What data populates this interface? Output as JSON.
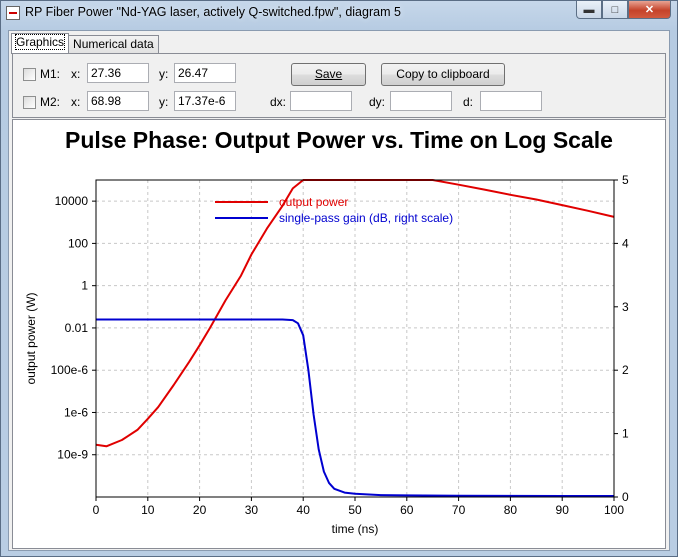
{
  "window": {
    "title": "RP Fiber Power \"Nd-YAG laser, actively Q-switched.fpw\", diagram 5",
    "controls": [
      "minimize-icon",
      "maximize-icon",
      "close-icon"
    ]
  },
  "tabs": [
    {
      "label": "Graphics",
      "active": true
    },
    {
      "label": "Numerical data",
      "active": false
    }
  ],
  "markers": {
    "m1": {
      "label": "M1:",
      "x_label": "x:",
      "x_value": "27.36",
      "y_label": "y:",
      "y_value": "26.47"
    },
    "m2": {
      "label": "M2:",
      "x_label": "x:",
      "x_value": "68.98",
      "y_label": "y:",
      "y_value": "17.37e-6"
    }
  },
  "buttons": {
    "save": "Save",
    "copy": "Copy to clipboard"
  },
  "diff": {
    "dx_label": "dx:",
    "dy_label": "dy:",
    "d_label": "d:",
    "dx_value": "",
    "dy_value": "",
    "d_value": ""
  },
  "chart_data": {
    "type": "line",
    "title": "Pulse Phase: Output Power vs. Time on Log Scale",
    "xlabel": "time (ns)",
    "ylabel": "output power (W)",
    "y2label": "",
    "xlim": [
      0,
      100
    ],
    "ylim_log10": [
      -10,
      5
    ],
    "y2lim": [
      0,
      5
    ],
    "grid": true,
    "legend_position": "top-center",
    "x_ticks": [
      "0",
      "10",
      "20",
      "30",
      "40",
      "50",
      "60",
      "70",
      "80",
      "90",
      "100"
    ],
    "y_ticks": [
      "10e-9",
      "1e-6",
      "100e-6",
      "0.01",
      "1",
      "100",
      "10000"
    ],
    "y_tick_values": [
      1e-08,
      1e-06,
      0.0001,
      0.01,
      1,
      100,
      10000
    ],
    "y2_ticks": [
      "0",
      "1",
      "2",
      "3",
      "4",
      "5"
    ],
    "series": [
      {
        "name": "output power",
        "axis": "left",
        "color": "#e00000",
        "x": [
          0,
          2,
          5,
          8,
          10,
          12,
          15,
          18,
          20,
          22,
          25,
          28,
          30,
          33,
          36,
          38,
          40,
          42,
          44,
          46,
          48,
          50,
          55,
          60,
          65,
          70,
          75,
          80,
          85,
          90,
          95,
          100
        ],
        "y": [
          3e-08,
          2.5e-08,
          5e-08,
          1.5e-07,
          5e-07,
          1.8e-06,
          2e-05,
          0.00025,
          0.0015,
          0.01,
          0.2,
          3,
          30,
          500,
          6000,
          40000,
          150000,
          400000,
          600000,
          600000,
          550000,
          480000,
          300000,
          180000,
          110000,
          60000,
          35000,
          20000,
          12000,
          6500,
          3500,
          1800
        ]
      },
      {
        "name": "single-pass gain (dB, right scale)",
        "axis": "right",
        "color": "#0000d0",
        "x": [
          0,
          10,
          20,
          30,
          36,
          38,
          39,
          40,
          41,
          42,
          43,
          44,
          45,
          46,
          48,
          50,
          55,
          60,
          70,
          80,
          90,
          100
        ],
        "y": [
          2.8,
          2.8,
          2.8,
          2.8,
          2.8,
          2.79,
          2.74,
          2.55,
          2.0,
          1.3,
          0.75,
          0.4,
          0.22,
          0.13,
          0.07,
          0.05,
          0.03,
          0.025,
          0.02,
          0.018,
          0.016,
          0.015
        ]
      }
    ]
  }
}
